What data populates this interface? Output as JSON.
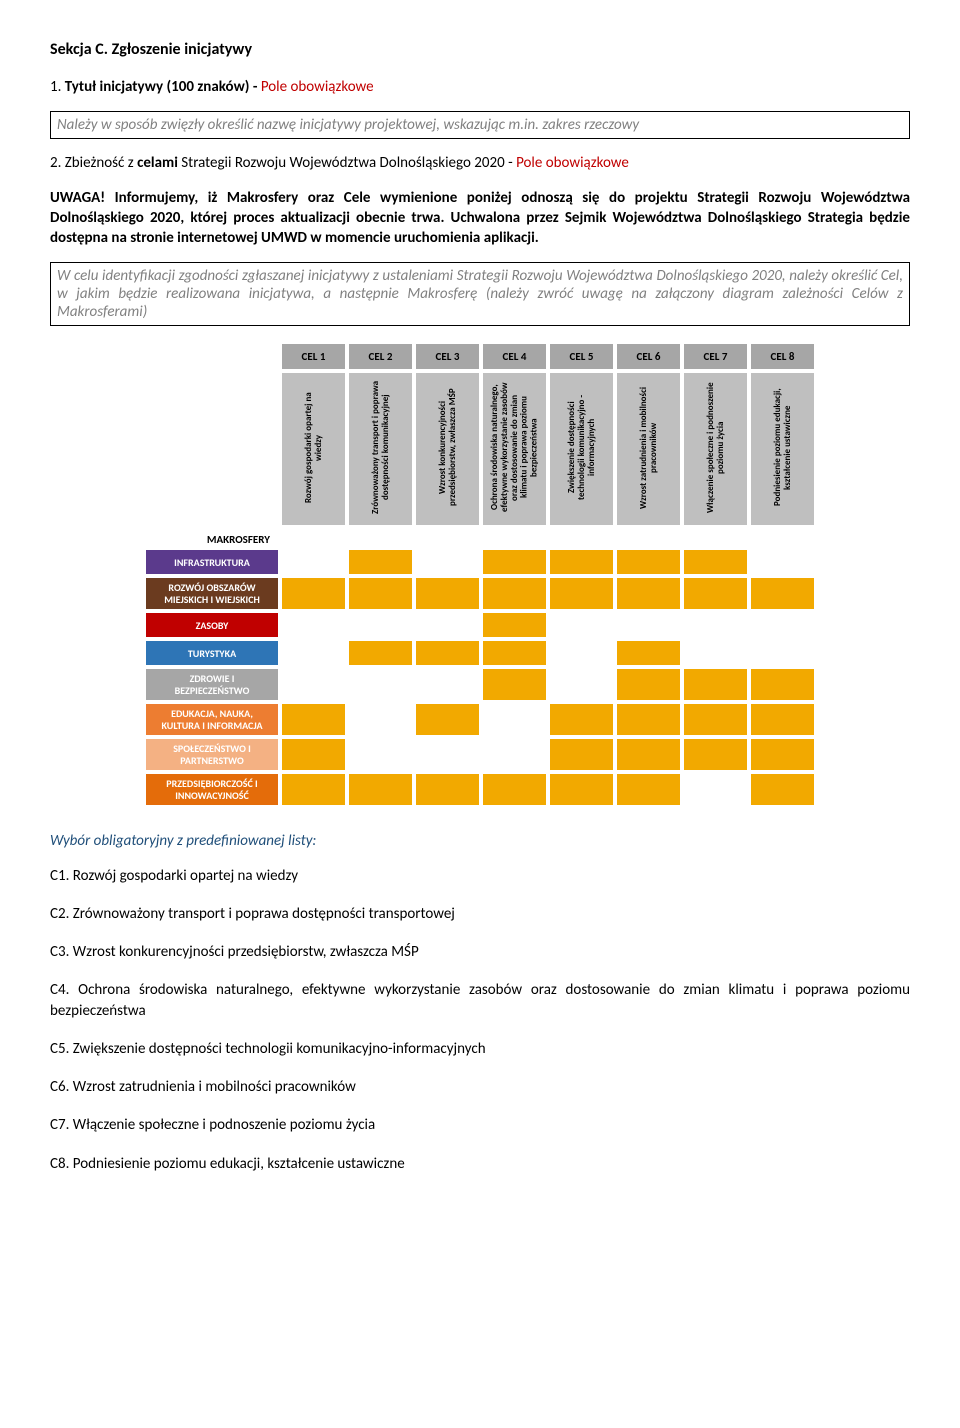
{
  "section_heading": "Sekcja C. Zgłoszenie inicjatywy",
  "item1_prefix": "1. ",
  "item1_bold": "Tytuł inicjatywy (100 znaków) - ",
  "item1_red": "Pole obowiązkowe",
  "box1_text": "Należy w sposób zwięzły określić  nazwę inicjatywy projektowej, wskazując m.in. zakres rzeczowy",
  "item2_prefix": "2. Zbieżność z ",
  "item2_bold": "celami",
  "item2_rest": " Strategii Rozwoju Województwa Dolnośląskiego 2020 - ",
  "item2_red": "Pole obowiązkowe",
  "uwaga_label": "UWAGA!",
  "uwaga_text": " Informujemy, iż Makrosfery oraz Cele wymienione poniżej odnoszą się do projektu Strategii Rozwoju Województwa Dolnośląskiego 2020, której proces aktualizacji obecnie trwa. Uchwalona przez Sejmik Województwa Dolnośląskiego Strategia będzie dostępna na stronie internetowej  UMWD  w momencie uruchomienia aplikacji.",
  "box2_text": "W celu identyfikacji zgodności zgłaszanej inicjatywy z ustaleniami Strategii Rozwoju Województwa Dolnośląskiego 2020, należy określić Cel, w jakim będzie realizowana inicjatywa, a następnie Makrosferę (należy zwróć uwagę na załączony diagram zależności Celów z Makrosferami)",
  "matrix": {
    "makrosfery_title": "MAKROSFERY",
    "cel_headers": [
      "CEL 1",
      "CEL 2",
      "CEL 3",
      "CEL 4",
      "CEL 5",
      "CEL 6",
      "CEL 7",
      "CEL 8"
    ],
    "cel_desc": [
      "Rozwój gospodarki opartej na wiedzy",
      "Zrównoważony transport i poprawa dostępności komunikacyjnej",
      "Wzrost konkurencyjności przedsiębiorstw, zwłaszcza MŚP",
      "Ochrona środowiska naturalnego, efektywne wykorzystanie zasobów oraz dostosowanie do zmian klimatu i poprawa poziomu bezpieczeństwa",
      "Zwiększenie dostępności technologii komunikacyjno - informacyjnych",
      "Wzrost zatrudnienia i mobilności pracowników",
      "Włączenie społeczne i podnoszenie poziomu życia",
      "Podniesienie poziomu edukacji, kształcenie ustawiczne"
    ],
    "rows": [
      {
        "label": "INFRASTRUKTURA",
        "color": "#5b3a8c",
        "cells": [
          0,
          1,
          0,
          1,
          1,
          1,
          1,
          0
        ]
      },
      {
        "label": "ROZWÓJ OBSZARÓW MIEJSKICH I WIEJSKICH",
        "color": "#6b3b1f",
        "cells": [
          1,
          1,
          1,
          1,
          1,
          1,
          1,
          1
        ]
      },
      {
        "label": "ZASOBY",
        "color": "#c00000",
        "cells": [
          0,
          0,
          0,
          1,
          0,
          0,
          0,
          0
        ]
      },
      {
        "label": "TURYSTYKA",
        "color": "#2e75b6",
        "cells": [
          0,
          1,
          1,
          1,
          0,
          1,
          0,
          0
        ]
      },
      {
        "label": "ZDROWIE I BEZPIECZEŃSTWO",
        "color": "#a6a6a6",
        "cells": [
          0,
          0,
          0,
          1,
          0,
          1,
          1,
          1
        ]
      },
      {
        "label": "EDUKACJA, NAUKA, KULTURA I INFORMACJA",
        "color": "#ed7d31",
        "cells": [
          1,
          0,
          1,
          0,
          1,
          1,
          1,
          1
        ]
      },
      {
        "label": "SPOŁECZEŃSTWO I PARTNERSTWO",
        "color": "#f4b183",
        "cells": [
          1,
          0,
          0,
          0,
          1,
          1,
          1,
          1
        ]
      },
      {
        "label": "PRZEDSIĘBIORCZOŚĆ I INNOWACYJNOŚĆ",
        "color": "#e46c0a",
        "cells": [
          1,
          1,
          1,
          1,
          1,
          1,
          0,
          1
        ]
      }
    ],
    "on_color": "#f2a900",
    "header_bg": "#a6a6a6",
    "desc_bg": "#bfbfbf"
  },
  "choice_heading": "Wybór obligatoryjny z predefiniowanej listy:",
  "choices": [
    "C1. Rozwój gospodarki opartej na wiedzy",
    "C2. Zrównoważony transport i poprawa dostępności  transportowej",
    "C3. Wzrost konkurencyjności przedsiębiorstw, zwłaszcza MŚP",
    "C4. Ochrona środowiska naturalnego,   efektywne wykorzystanie zasobów oraz dostosowanie do zmian klimatu i poprawa poziomu bezpieczeństwa",
    "C5. Zwiększenie dostępności technologii komunikacyjno-informacyjnych",
    "C6. Wzrost zatrudnienia i mobilności pracowników",
    "C7. Włączenie społeczne i podnoszenie poziomu życia",
    "C8. Podniesienie poziomu edukacji, kształcenie ustawiczne"
  ]
}
